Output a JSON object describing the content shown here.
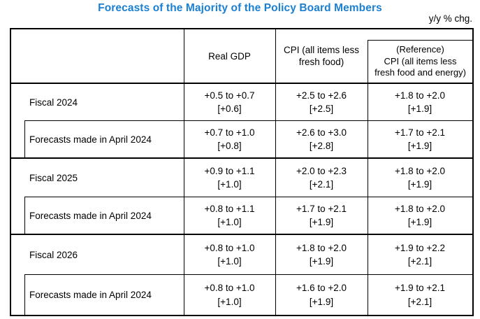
{
  "title": "Forecasts of the Majority of the Policy Board Members",
  "unit_note": "y/y % chg.",
  "colors": {
    "title_accent": "#1b7fd2",
    "grid": "#000000"
  },
  "table": {
    "column_headers": {
      "real_gdp": "Real GDP",
      "cpi": "CPI (all items less\nfresh food)",
      "cpi_reference": "(Reference)\nCPI (all items less\nfresh food and energy)"
    },
    "rows": [
      {
        "row_type": "fiscal-year",
        "label": "Fiscal 2024",
        "real_gdp": {
          "range": "+0.5 to +0.7",
          "median": "[+0.6]"
        },
        "cpi": {
          "range": "+2.5 to +2.6",
          "median": "[+2.5]"
        },
        "cpi_reference": {
          "range": "+1.8 to +2.0",
          "median": "[+1.9]"
        }
      },
      {
        "row_type": "previous-forecast",
        "label": "Forecasts made in April 2024",
        "real_gdp": {
          "range": "+0.7 to +1.0",
          "median": "[+0.8]"
        },
        "cpi": {
          "range": "+2.6 to +3.0",
          "median": "[+2.8]"
        },
        "cpi_reference": {
          "range": "+1.7 to +2.1",
          "median": "[+1.9]"
        }
      },
      {
        "row_type": "fiscal-year",
        "label": "Fiscal 2025",
        "real_gdp": {
          "range": "+0.9 to +1.1",
          "median": "[+1.0]"
        },
        "cpi": {
          "range": "+2.0 to +2.3",
          "median": "[+2.1]"
        },
        "cpi_reference": {
          "range": "+1.8 to +2.0",
          "median": "[+1.9]"
        }
      },
      {
        "row_type": "previous-forecast",
        "label": "Forecasts made in April 2024",
        "real_gdp": {
          "range": "+0.8 to +1.1",
          "median": "[+1.0]"
        },
        "cpi": {
          "range": "+1.7 to +2.1",
          "median": "[+1.9]"
        },
        "cpi_reference": {
          "range": "+1.8 to +2.0",
          "median": "[+1.9]"
        }
      },
      {
        "row_type": "fiscal-year",
        "label": "Fiscal 2026",
        "real_gdp": {
          "range": "+0.8 to +1.0",
          "median": "[+1.0]"
        },
        "cpi": {
          "range": "+1.8 to +2.0",
          "median": "[+1.9]"
        },
        "cpi_reference": {
          "range": "+1.9 to +2.2",
          "median": "[+2.1]"
        }
      },
      {
        "row_type": "previous-forecast",
        "label": "Forecasts made in April 2024",
        "real_gdp": {
          "range": "+0.8 to +1.0",
          "median": "[+1.0]"
        },
        "cpi": {
          "range": "+1.6 to +2.0",
          "median": "[+1.9]"
        },
        "cpi_reference": {
          "range": "+1.9 to +2.1",
          "median": "[+2.1]"
        }
      }
    ]
  }
}
